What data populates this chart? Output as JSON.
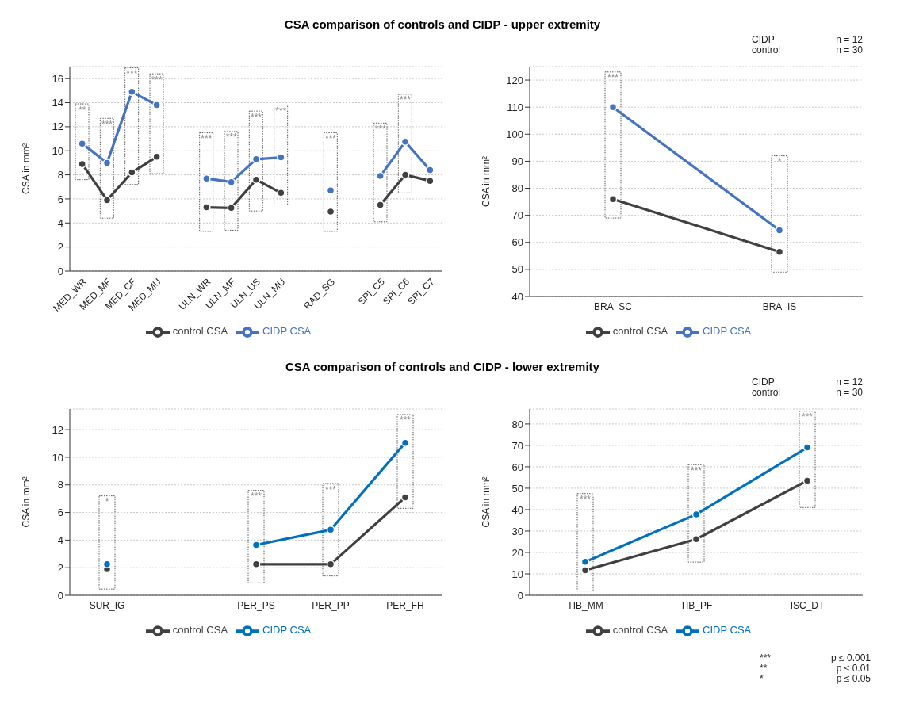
{
  "chart_data": [
    {
      "type": "line",
      "title": "CSA comparison of controls and CIDP - upper extremity",
      "ylabel": "CSA in mm²",
      "categories": [
        "MED_WR",
        "MED_MF",
        "MED_CF",
        "MED_MU",
        null,
        "ULN_WR",
        "ULN_MF",
        "ULN_US",
        "ULN_MU",
        null,
        "RAD_SG",
        null,
        "SPI_C5",
        "SPI_C6",
        "SPI_C7"
      ],
      "series": [
        {
          "type": "bar",
          "color": "#595959",
          "base": [
            7.6,
            4.4,
            7.2,
            8.1,
            null,
            3.3,
            3.4,
            5.0,
            5.5,
            null,
            3.3,
            null,
            4.1,
            6.5,
            null
          ],
          "values": [
            6.3,
            8.3,
            9.7,
            8.3,
            null,
            8.2,
            8.2,
            8.3,
            8.3,
            null,
            8.2,
            null,
            8.2,
            8.2,
            null
          ]
        },
        {
          "name": "control CSA",
          "color": "#404040",
          "values": [
            8.9,
            5.9,
            8.2,
            9.5,
            null,
            5.3,
            5.25,
            7.6,
            6.5,
            null,
            4.95,
            null,
            5.5,
            8.0,
            7.5
          ]
        },
        {
          "name": "CIDP CSA",
          "color": "#4472c4",
          "values": [
            10.6,
            9.0,
            14.9,
            13.8,
            null,
            7.7,
            7.4,
            9.3,
            9.45,
            null,
            6.7,
            null,
            7.9,
            10.75,
            8.4
          ]
        }
      ],
      "ylim": [
        0,
        17
      ],
      "yticks": [
        0,
        2,
        4,
        6,
        8,
        10,
        12,
        14,
        16
      ],
      "grid": "y",
      "legend": "bottom",
      "marker": "circle",
      "annotations": [
        {
          "text": "**",
          "x": "MED_WR",
          "y": 13.9
        },
        {
          "text": "***",
          "x": "MED_MF",
          "y": 12.7
        },
        {
          "text": "***",
          "x": "MED_CF",
          "y": 16.9
        },
        {
          "text": "***",
          "x": "MED_MU",
          "y": 16.4
        },
        {
          "text": "***",
          "x": "ULN_WR",
          "y": 11.5
        },
        {
          "text": "***",
          "x": "ULN_MF",
          "y": 11.6
        },
        {
          "text": "***",
          "x": "ULN_US",
          "y": 13.3
        },
        {
          "text": "***",
          "x": "ULN_MU",
          "y": 13.8
        },
        {
          "text": "***",
          "x": "RAD_SG",
          "y": 11.5
        },
        {
          "text": "***",
          "x": "SPI_C5",
          "y": 12.3
        },
        {
          "text": "***",
          "x": "SPI_C6",
          "y": 14.7
        }
      ]
    },
    {
      "type": "line",
      "ylabel": "CSA in mm²",
      "categories": [
        "BRA_SC",
        "BRA_IS"
      ],
      "series": [
        {
          "type": "bar",
          "color": "#595959",
          "base": [
            69,
            49
          ],
          "values": [
            54,
            43
          ]
        },
        {
          "name": "control CSA",
          "color": "#404040",
          "values": [
            76,
            56.5
          ]
        },
        {
          "name": "CIDP CSA",
          "color": "#4472c4",
          "values": [
            110,
            64.5
          ]
        }
      ],
      "ylim": [
        40,
        125
      ],
      "yticks": [
        40,
        50,
        60,
        70,
        80,
        90,
        100,
        110,
        120
      ],
      "grid": "y",
      "legend": "bottom",
      "marker": "circle",
      "annotations": [
        "CIDP",
        "n = 12",
        "control",
        "n = 30",
        {
          "text": "***",
          "x": "BRA_SC",
          "y": 123
        },
        {
          "text": "*",
          "x": "BRA_IS",
          "y": 92
        }
      ]
    },
    {
      "type": "line",
      "title": "CSA comparison of controls and CIDP - lower extremity",
      "ylabel": "CSA in mm²",
      "categories": [
        "SUR_IG",
        null,
        "PER_PS",
        "PER_PP",
        "PER_FH"
      ],
      "series": [
        {
          "type": "bar",
          "color": "#595959",
          "base": [
            0.45,
            null,
            0.9,
            1.4,
            6.3
          ],
          "values": [
            6.75,
            null,
            6.7,
            6.7,
            6.8
          ]
        },
        {
          "name": "control CSA",
          "color": "#404040",
          "values": [
            1.9,
            null,
            2.25,
            2.25,
            7.1
          ]
        },
        {
          "name": "CIDP CSA",
          "color": "#0070c0",
          "values": [
            2.25,
            null,
            3.65,
            4.75,
            11.05
          ]
        }
      ],
      "ylim": [
        0,
        13.5
      ],
      "yticks": [
        0,
        2,
        4,
        6,
        8,
        10,
        12
      ],
      "grid": "y",
      "legend": "bottom",
      "marker": "circle",
      "annotations": [
        {
          "text": "*",
          "x": "SUR_IG",
          "y": 7.2
        },
        {
          "text": "***",
          "x": "PER_PS",
          "y": 7.6
        },
        {
          "text": "***",
          "x": "PER_PP",
          "y": 8.1
        },
        {
          "text": "***",
          "x": "PER_FH",
          "y": 13.1
        }
      ]
    },
    {
      "type": "line",
      "ylabel": "CSA in mm²",
      "categories": [
        "TIB_MM",
        "TIB_PF",
        "ISC_DT"
      ],
      "series": [
        {
          "type": "bar",
          "color": "#595959",
          "base": [
            2,
            15.5,
            41
          ],
          "values": [
            45.5,
            45.5,
            45
          ]
        },
        {
          "name": "control CSA",
          "color": "#404040",
          "values": [
            11.7,
            26.2,
            53.5
          ]
        },
        {
          "name": "CIDP CSA",
          "color": "#0070c0",
          "values": [
            15.6,
            37.8,
            69
          ]
        }
      ],
      "ylim": [
        0,
        87
      ],
      "yticks": [
        0,
        10,
        20,
        30,
        40,
        50,
        60,
        70,
        80
      ],
      "grid": "y",
      "legend": "bottom",
      "marker": "circle",
      "annotations": [
        "CIDP",
        "n = 12",
        "control",
        "n = 30",
        "***",
        "p ≤ 0.001",
        "**",
        "p ≤ 0.01",
        "*",
        "p ≤ 0.05",
        {
          "text": "***",
          "x": "TIB_MM",
          "y": 47.5
        },
        {
          "text": "***",
          "x": "TIB_PF",
          "y": 61
        },
        {
          "text": "***",
          "x": "ISC_DT",
          "y": 86
        }
      ]
    }
  ]
}
